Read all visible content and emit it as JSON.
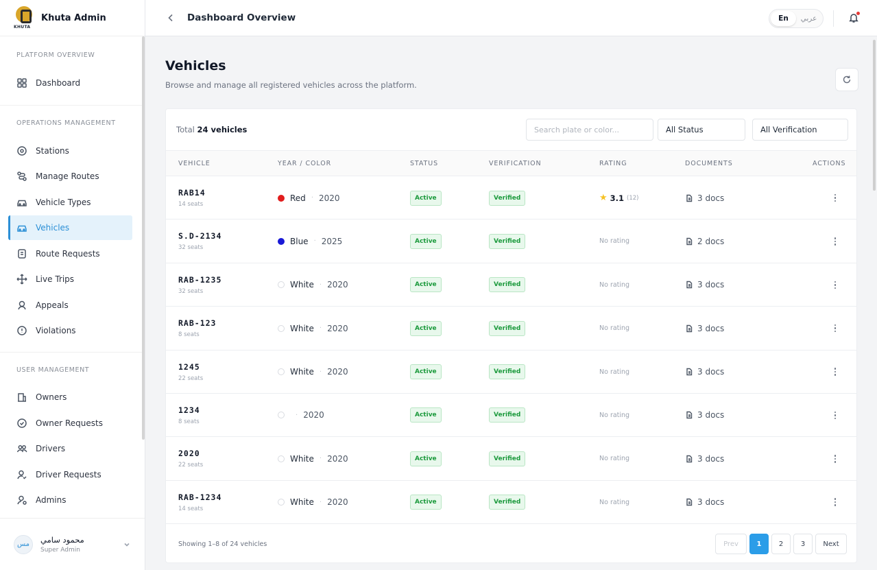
{
  "brand": {
    "name": "Khuta Admin",
    "logo_text": "KHUTA"
  },
  "sidebar": {
    "sections": [
      {
        "title": "PLATFORM OVERVIEW",
        "items": [
          {
            "label": "Dashboard",
            "icon": "grid-icon"
          }
        ]
      },
      {
        "title": "OPERATIONS MANAGEMENT",
        "items": [
          {
            "label": "Stations",
            "icon": "map-pin-icon"
          },
          {
            "label": "Manage Routes",
            "icon": "route-icon"
          },
          {
            "label": "Vehicle Types",
            "icon": "car-icon"
          },
          {
            "label": "Vehicles",
            "icon": "vehicle-icon",
            "active": true
          },
          {
            "label": "Route Requests",
            "icon": "request-icon"
          },
          {
            "label": "Live Trips",
            "icon": "move-icon"
          },
          {
            "label": "Appeals",
            "icon": "appeal-icon"
          },
          {
            "label": "Violations",
            "icon": "alert-icon"
          }
        ]
      },
      {
        "title": "USER MANAGEMENT",
        "items": [
          {
            "label": "Owners",
            "icon": "building-icon"
          },
          {
            "label": "Owner Requests",
            "icon": "check-circle-icon"
          },
          {
            "label": "Drivers",
            "icon": "users-icon"
          },
          {
            "label": "Driver Requests",
            "icon": "user-check-icon"
          },
          {
            "label": "Admins",
            "icon": "user-gear-icon"
          }
        ]
      }
    ],
    "user": {
      "initials": "مس",
      "name": "محمود سامي",
      "role": "Super Admin"
    }
  },
  "header": {
    "title": "Dashboard Overview",
    "lang_en": "En",
    "lang_ar": "عربي",
    "accent": "#2b9de8"
  },
  "page": {
    "title": "Vehicles",
    "subtitle": "Browse and manage all registered vehicles across the platform."
  },
  "toolbar": {
    "total_prefix": "Total",
    "total_count": "24 vehicles",
    "search_placeholder": "Search plate or color...",
    "status_filter": "All Status",
    "verification_filter": "All Verification"
  },
  "table": {
    "columns": [
      "VEHICLE",
      "YEAR / COLOR",
      "STATUS",
      "VERIFICATION",
      "RATING",
      "DOCUMENTS",
      "ACTIONS"
    ],
    "rows": [
      {
        "plate": "RAB14",
        "seats": "14 seats",
        "color": "Red",
        "swatch": "#e11d1d",
        "year": "2020",
        "status": "Active",
        "verification": "Verified",
        "rating": "3.1",
        "rating_count": "(12)",
        "docs": "3 docs"
      },
      {
        "plate": "S.D-2134",
        "seats": "32 seats",
        "color": "Blue",
        "swatch": "#1919d6",
        "year": "2025",
        "status": "Active",
        "verification": "Verified",
        "rating": "No rating",
        "docs": "2 docs"
      },
      {
        "plate": "RAB-1235",
        "seats": "32 seats",
        "color": "White",
        "swatch": "#ffffff",
        "year": "2020",
        "status": "Active",
        "verification": "Verified",
        "rating": "No rating",
        "docs": "3 docs"
      },
      {
        "plate": "RAB-123",
        "seats": "8 seats",
        "color": "White",
        "swatch": "#ffffff",
        "year": "2020",
        "status": "Active",
        "verification": "Verified",
        "rating": "No rating",
        "docs": "3 docs"
      },
      {
        "plate": "1245",
        "seats": "22 seats",
        "color": "White",
        "swatch": "#ffffff",
        "year": "2020",
        "status": "Active",
        "verification": "Verified",
        "rating": "No rating",
        "docs": "3 docs"
      },
      {
        "plate": "1234",
        "seats": "8 seats",
        "color": "",
        "swatch": "#ffffff",
        "year": "2020",
        "status": "Active",
        "verification": "Verified",
        "rating": "No rating",
        "docs": "3 docs"
      },
      {
        "plate": "2020",
        "seats": "22 seats",
        "color": "White",
        "swatch": "#ffffff",
        "year": "2020",
        "status": "Active",
        "verification": "Verified",
        "rating": "No rating",
        "docs": "3 docs"
      },
      {
        "plate": "RAB-1234",
        "seats": "14 seats",
        "color": "White",
        "swatch": "#ffffff",
        "year": "2020",
        "status": "Active",
        "verification": "Verified",
        "rating": "No rating",
        "docs": "3 docs"
      }
    ]
  },
  "footer": {
    "showing": "Showing 1–8 of 24 vehicles",
    "prev": "Prev",
    "pages": [
      "1",
      "2",
      "3"
    ],
    "current_page": "1",
    "next": "Next"
  }
}
